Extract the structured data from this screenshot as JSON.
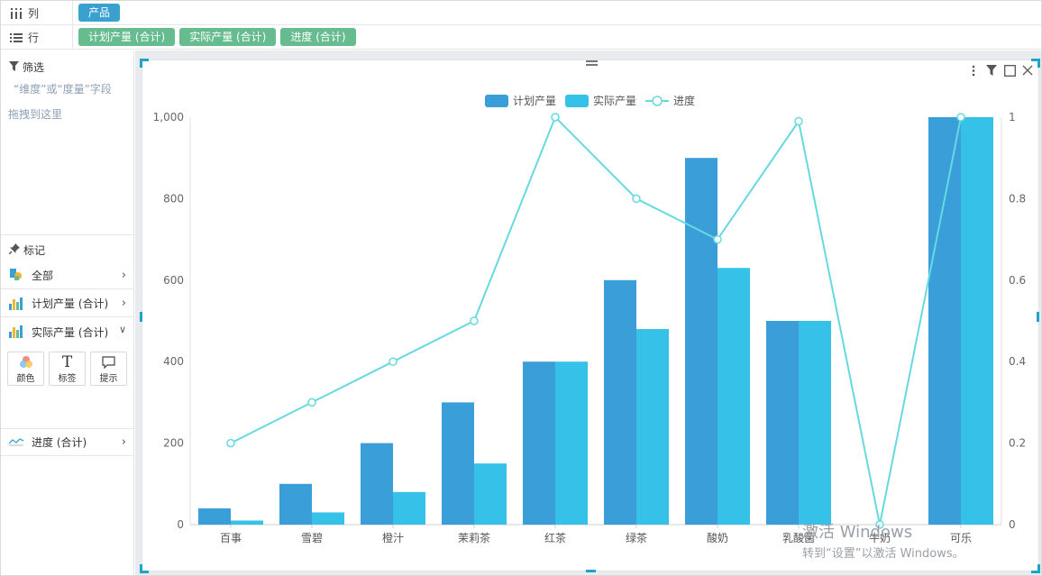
{
  "shelves": {
    "columns": {
      "label": "列",
      "pills": [
        {
          "label": "产品",
          "kind": "dimension"
        }
      ]
    },
    "rows": {
      "label": "行",
      "pills": [
        {
          "label": "计划产量 (合计)",
          "kind": "measure"
        },
        {
          "label": "实际产量 (合计)",
          "kind": "measure"
        },
        {
          "label": "进度 (合计)",
          "kind": "measure"
        }
      ]
    }
  },
  "filter": {
    "title": "筛选",
    "hint_line1": "“维度”或“度量”字段",
    "hint_line2": "拖拽到这里"
  },
  "marks": {
    "title": "标记",
    "rows": [
      {
        "label": "全部",
        "chevron": "chevron-right-icon"
      },
      {
        "label": "计划产量 (合计)",
        "chevron": "chevron-right-icon"
      },
      {
        "label": "实际产量 (合计)",
        "chevron": "chevron-down-icon"
      },
      {
        "label": "进度 (合计)",
        "chevron": "chevron-right-icon"
      }
    ],
    "buttons": [
      {
        "label": "颜色",
        "icon": "color-palette-icon"
      },
      {
        "label": "标签",
        "icon": "text-label-icon"
      },
      {
        "label": "提示",
        "icon": "tooltip-icon"
      }
    ]
  },
  "colors": {
    "dimension_pill": "#3aa0d0",
    "measure_pill": "#66bb8f",
    "planned": "#3a9fd9",
    "actual": "#35c1e8",
    "progress": "#66d9e0",
    "selection": "#1fa3c8"
  },
  "chart_data": {
    "type": "bar",
    "categories": [
      "百事",
      "雪碧",
      "橙汁",
      "茉莉茶",
      "红茶",
      "绿茶",
      "酸奶",
      "乳酸菌",
      "牛奶",
      "可乐"
    ],
    "series": [
      {
        "name": "计划产量",
        "type": "bar",
        "axis": "left",
        "values": [
          40,
          100,
          200,
          300,
          400,
          600,
          900,
          500,
          0,
          1000
        ]
      },
      {
        "name": "实际产量",
        "type": "bar",
        "axis": "left",
        "values": [
          10,
          30,
          80,
          150,
          400,
          480,
          630,
          500,
          0,
          1000
        ]
      },
      {
        "name": "进度",
        "type": "line",
        "axis": "right",
        "values": [
          0.2,
          0.3,
          0.4,
          0.5,
          1,
          0.8,
          0.7,
          0.99,
          0,
          1
        ]
      }
    ],
    "y_left": {
      "ylim": [
        0,
        1000
      ],
      "ticks": [
        "0",
        "200",
        "400",
        "600",
        "800",
        "1,000"
      ]
    },
    "y_right": {
      "ylim": [
        0,
        1
      ],
      "ticks": [
        "0",
        "0.2",
        "0.4",
        "0.6",
        "0.8",
        "1"
      ]
    },
    "legend": "top-center",
    "grid": false
  },
  "watermark": {
    "line1": "激活 Windows",
    "line2": "转到“设置”以激活 Windows。"
  }
}
